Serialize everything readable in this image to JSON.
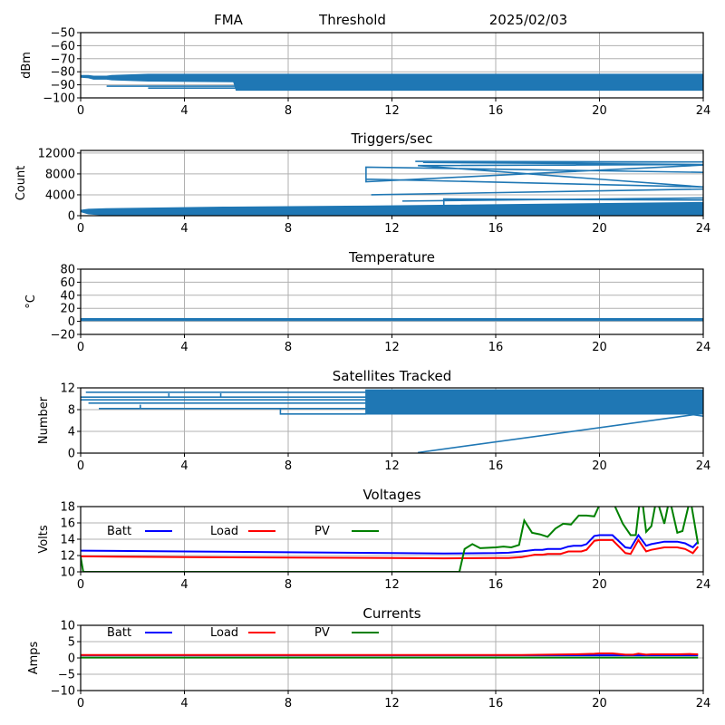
{
  "header": {
    "left": "FMA",
    "middle": "Threshold",
    "right": "2025/02/03"
  },
  "colors": {
    "series": "#1f77b4",
    "batt": "#0000ff",
    "load": "#ff0000",
    "pv": "#008000",
    "grid": "#b0b0b0"
  },
  "legend": {
    "batt": "Batt",
    "load": "Load",
    "pv": "PV"
  },
  "chart_data": [
    {
      "type": "line",
      "title": "",
      "ylabel": "dBm",
      "xlabel": "",
      "xlim": [
        0,
        24
      ],
      "ylim": [
        -100,
        -50
      ],
      "xticks": [
        0,
        4,
        8,
        12,
        16,
        20,
        24
      ],
      "yticks": [
        -50,
        -60,
        -70,
        -80,
        -90,
        -100
      ],
      "grid": true,
      "series": [
        {
          "name": "FMA Threshold",
          "color": "#1f77b4",
          "band": true,
          "x": [
            0,
            0.3,
            0.5,
            1,
            1.2,
            2.6,
            5.9,
            6,
            24
          ],
          "upper": [
            -83,
            -83,
            -83.5,
            -83.5,
            -83,
            -82,
            -82,
            -82,
            -82
          ],
          "lower": [
            -84,
            -84.5,
            -85.5,
            -85.5,
            -86,
            -87,
            -87.5,
            -94,
            -94
          ],
          "extra_lines": [
            {
              "x": [
                1,
                6.1
              ],
              "y": [
                -91,
                -91
              ]
            },
            {
              "x": [
                2.6,
                6.1
              ],
              "y": [
                -92.5,
                -92.5
              ]
            }
          ]
        }
      ]
    },
    {
      "type": "line",
      "title": "Triggers/sec",
      "ylabel": "Count",
      "xlabel": "",
      "xlim": [
        0,
        24
      ],
      "ylim": [
        0,
        12500
      ],
      "xticks": [
        0,
        4,
        8,
        12,
        16,
        20,
        24
      ],
      "yticks": [
        0,
        4000,
        8000,
        12000
      ],
      "grid": true,
      "series": [
        {
          "name": "Triggers",
          "color": "#1f77b4",
          "band": true,
          "x": [
            0,
            0.3,
            1,
            2.6,
            5.5,
            11,
            24
          ],
          "upper": [
            1000,
            1200,
            1300,
            1400,
            1600,
            1800,
            2500
          ],
          "lower": [
            800,
            400,
            100,
            0,
            0,
            0,
            0
          ],
          "extra_lines": [
            {
              "x": [
                12.9,
                24,
                13.2,
                24,
                13,
                24,
                11,
                11,
                24,
                11,
                11,
                24
              ],
              "y": [
                10400,
                10300,
                10200,
                9800,
                9600,
                5500,
                7000,
                9300,
                8300,
                9300,
                6500,
                9700
              ]
            },
            {
              "x": [
                11.2,
                24
              ],
              "y": [
                4000,
                5100
              ]
            },
            {
              "x": [
                12.4,
                24
              ],
              "y": [
                2800,
                3400
              ]
            },
            {
              "x": [
                14,
                14,
                24
              ],
              "y": [
                1800,
                3200,
                3000
              ]
            }
          ]
        }
      ]
    },
    {
      "type": "line",
      "title": "Temperature",
      "ylabel": "°C",
      "xlabel": "",
      "xlim": [
        0,
        24
      ],
      "ylim": [
        -20,
        80
      ],
      "xticks": [
        0,
        4,
        8,
        12,
        16,
        20,
        24
      ],
      "yticks": [
        -20,
        0,
        20,
        40,
        60,
        80
      ],
      "grid": true,
      "series": [
        {
          "name": "Temperature",
          "color": "#1f77b4",
          "band": true,
          "x": [
            0,
            24
          ],
          "upper": [
            4,
            4
          ],
          "lower": [
            1.5,
            1.5
          ],
          "extra_lines": []
        }
      ]
    },
    {
      "type": "line",
      "title": "Satellites Tracked",
      "ylabel": "Number",
      "xlabel": "",
      "xlim": [
        0,
        24
      ],
      "ylim": [
        0,
        12
      ],
      "xticks": [
        0,
        4,
        8,
        12,
        16,
        20,
        24
      ],
      "yticks": [
        0,
        4,
        8,
        12
      ],
      "grid": true,
      "series": [
        {
          "name": "Satellites",
          "color": "#1f77b4",
          "band": true,
          "x": [
            11,
            24
          ],
          "upper": [
            11.6,
            11.6
          ],
          "lower": [
            7.2,
            7.2
          ],
          "extra_lines": [
            {
              "x": [
                0.2,
                11
              ],
              "y": [
                11.2,
                11.2
              ]
            },
            {
              "x": [
                0,
                11
              ],
              "y": [
                10.3,
                10.3
              ]
            },
            {
              "x": [
                0,
                11
              ],
              "y": [
                9.8,
                9.8
              ]
            },
            {
              "x": [
                0.3,
                11
              ],
              "y": [
                9.2,
                9.2
              ]
            },
            {
              "x": [
                0.7,
                11
              ],
              "y": [
                8.2,
                8.2
              ]
            },
            {
              "x": [
                7.7,
                7.7,
                11
              ],
              "y": [
                8.2,
                7.2,
                7.2
              ]
            },
            {
              "x": [
                13,
                24
              ],
              "y": [
                0.1,
                7.3
              ]
            },
            {
              "x": [
                23,
                24
              ],
              "y": [
                7.5,
                6.8
              ]
            },
            {
              "x": [
                3.4,
                3.4
              ],
              "y": [
                10.3,
                11
              ]
            },
            {
              "x": [
                5.4,
                5.4
              ],
              "y": [
                10.3,
                11
              ]
            },
            {
              "x": [
                2.3,
                2.3
              ],
              "y": [
                8.2,
                8.9
              ]
            }
          ]
        }
      ]
    },
    {
      "type": "line",
      "title": "Voltages",
      "ylabel": "Volts",
      "xlabel": "",
      "xlim": [
        0,
        24
      ],
      "ylim": [
        10,
        18
      ],
      "xticks": [
        0,
        4,
        8,
        12,
        16,
        20,
        24
      ],
      "yticks": [
        10,
        12,
        14,
        16,
        18
      ],
      "grid": true,
      "legend": "top-left-inline",
      "series": [
        {
          "name": "Batt",
          "color": "#0000ff",
          "x": [
            0,
            4,
            8,
            12,
            14,
            16,
            16.5,
            17,
            17.5,
            17.8,
            18,
            18.5,
            18.8,
            19,
            19.3,
            19.5,
            19.8,
            20,
            20.5,
            21,
            21.2,
            21.5,
            21.8,
            22,
            22.5,
            23,
            23.3,
            23.6,
            23.8
          ],
          "y": [
            12.6,
            12.5,
            12.4,
            12.3,
            12.25,
            12.3,
            12.35,
            12.5,
            12.7,
            12.7,
            12.8,
            12.8,
            13.1,
            13.2,
            13.2,
            13.4,
            14.4,
            14.5,
            14.5,
            13.0,
            12.9,
            14.5,
            13.2,
            13.4,
            13.7,
            13.7,
            13.5,
            13.0,
            13.7
          ]
        },
        {
          "name": "Load",
          "color": "#ff0000",
          "x": [
            0,
            4,
            8,
            12,
            14,
            16,
            16.5,
            17,
            17.5,
            17.8,
            18,
            18.5,
            18.8,
            19,
            19.3,
            19.5,
            19.8,
            20,
            20.5,
            21,
            21.2,
            21.5,
            21.8,
            22,
            22.5,
            23,
            23.3,
            23.6,
            23.8
          ],
          "y": [
            11.9,
            11.8,
            11.75,
            11.7,
            11.65,
            11.7,
            11.7,
            11.8,
            12.1,
            12.1,
            12.2,
            12.2,
            12.5,
            12.5,
            12.5,
            12.7,
            13.8,
            13.9,
            13.9,
            12.3,
            12.2,
            13.9,
            12.5,
            12.7,
            13.0,
            13.0,
            12.8,
            12.3,
            13.1
          ]
        },
        {
          "name": "PV",
          "color": "#008000",
          "x": [
            0,
            0.1,
            14.6,
            14.8,
            15.1,
            15.4,
            16,
            16.3,
            16.6,
            16.9,
            17.1,
            17.4,
            17.7,
            18.0,
            18.3,
            18.6,
            18.9,
            19.2,
            19.5,
            19.8,
            20.0,
            20.3,
            20.6,
            20.9,
            21.2,
            21.4,
            21.6,
            21.8,
            22.0,
            22.2,
            22.5,
            22.7,
            23.0,
            23.2,
            23.5,
            23.8
          ],
          "y": [
            11.8,
            10,
            10,
            12.8,
            13.4,
            12.9,
            13.0,
            13.1,
            13.0,
            13.3,
            16.3,
            14.8,
            14.6,
            14.3,
            15.3,
            15.9,
            15.8,
            16.9,
            16.9,
            16.8,
            18.2,
            20,
            18,
            15.9,
            14.5,
            14.5,
            20,
            14.9,
            15.6,
            19,
            15.9,
            19,
            14.8,
            15.0,
            19,
            13.4
          ]
        }
      ]
    },
    {
      "type": "line",
      "title": "Currents",
      "ylabel": "Amps",
      "xlabel": "",
      "xlim": [
        0,
        24
      ],
      "ylim": [
        -10,
        10
      ],
      "xticks": [
        0,
        4,
        8,
        12,
        16,
        20,
        24
      ],
      "yticks": [
        -10,
        -5,
        0,
        5,
        10
      ],
      "grid": true,
      "legend": "top-left-inline",
      "series": [
        {
          "name": "Batt",
          "color": "#0000ff",
          "x": [
            0,
            23.8
          ],
          "y": [
            0.8,
            0.8
          ]
        },
        {
          "name": "Load",
          "color": "#ff0000",
          "x": [
            0,
            16,
            17,
            18,
            19,
            19.8,
            20,
            20.5,
            21,
            21.3,
            21.5,
            21.8,
            22,
            22.5,
            23,
            23.5,
            23.8
          ],
          "y": [
            0.9,
            0.9,
            0.9,
            1.0,
            1.1,
            1.3,
            1.4,
            1.4,
            1.0,
            1.0,
            1.3,
            1.0,
            1.1,
            1.1,
            1.1,
            1.2,
            1.1
          ]
        },
        {
          "name": "PV",
          "color": "#008000",
          "x": [
            0,
            23.8
          ],
          "y": [
            0.1,
            0.1
          ]
        }
      ]
    }
  ]
}
